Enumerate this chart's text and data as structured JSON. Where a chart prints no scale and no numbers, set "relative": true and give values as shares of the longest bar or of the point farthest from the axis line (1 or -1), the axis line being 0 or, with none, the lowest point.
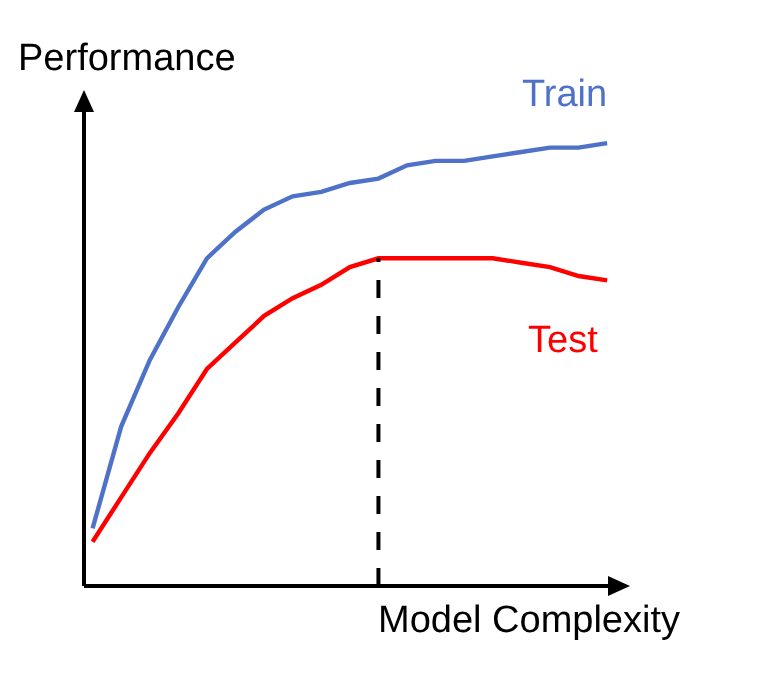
{
  "chart_data": {
    "type": "line",
    "relative": true,
    "xlabel": "Model Complexity",
    "ylabel": "Performance",
    "categories": [
      null,
      null,
      null,
      null,
      null,
      null,
      null,
      null,
      null,
      null,
      null,
      null,
      null,
      null,
      null,
      null,
      null,
      null,
      null
    ],
    "series": [
      {
        "name": "Train",
        "color": "#4f72c9",
        "values": [
          0.13,
          0.36,
          0.51,
          0.63,
          0.74,
          0.8,
          0.85,
          0.88,
          0.89,
          0.91,
          0.92,
          0.95,
          0.96,
          0.96,
          0.97,
          0.98,
          0.99,
          0.99,
          1.0
        ]
      },
      {
        "name": "Test",
        "color": "#ff0000",
        "values": [
          0.1,
          0.2,
          0.3,
          0.39,
          0.49,
          0.55,
          0.61,
          0.65,
          0.68,
          0.72,
          0.74,
          0.74,
          0.74,
          0.74,
          0.74,
          0.73,
          0.72,
          0.7,
          0.69
        ]
      }
    ],
    "line_style": "solid"
  }
}
